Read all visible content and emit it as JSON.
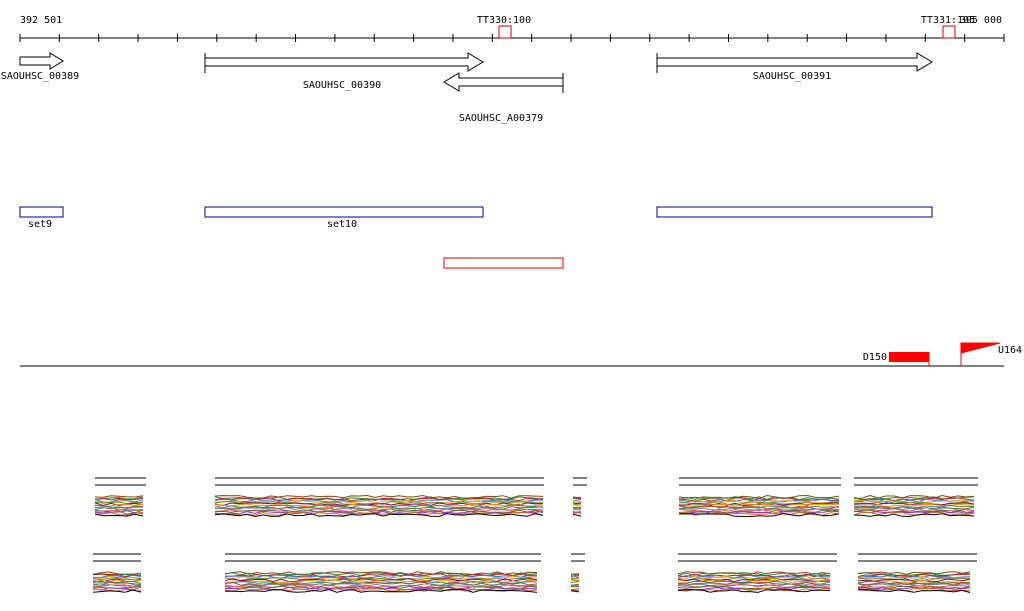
{
  "ruler": {
    "start_label": "392 501",
    "end_label": "395 000"
  },
  "markers": [
    {
      "label": "TT330:100"
    },
    {
      "label": "TT331:195"
    }
  ],
  "genes": [
    {
      "label": "SAOUHSC_00389"
    },
    {
      "label": "SAOUHSC_00390"
    },
    {
      "label": "SAOUHSC_A00379"
    },
    {
      "label": "SAOUHSC_00391"
    }
  ],
  "sets": [
    {
      "label": "set9"
    },
    {
      "label": "set10"
    }
  ],
  "features": [
    {
      "label": "D150"
    },
    {
      "label": "U164"
    }
  ]
}
